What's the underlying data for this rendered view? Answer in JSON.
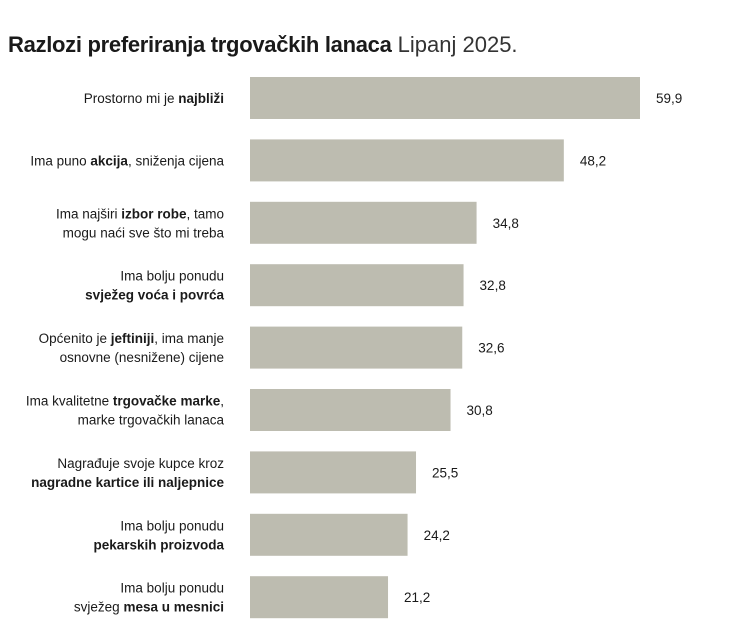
{
  "header": {
    "title": "Razlozi preferiranja trgovačkih lanaca",
    "subtitle": "Lipanj 2025."
  },
  "colors": {
    "bar": "#bdbcb0",
    "text": "#1a1a1a"
  },
  "chart_data": {
    "type": "bar",
    "orientation": "horizontal",
    "title": "Razlozi preferiranja trgovačkih lanaca",
    "subtitle": "Lipanj 2025.",
    "xlabel": "",
    "ylabel": "",
    "xlim": [
      0,
      60
    ],
    "grid": false,
    "legend": "none",
    "categories": [
      "Prostorno mi je najbliži",
      "Ima puno akcija, sniženja cijena",
      "Ima najširi izbor robe, tamo mogu naći sve što mi treba",
      "Ima bolju ponudu svježeg voća i povrća",
      "Općenito je jeftiniji, ima manje osnovne (nesnižene) cijene",
      "Ima kvalitetne trgovačke marke, marke trgovačkih lanaca",
      "Nagrađuje svoje kupce kroz nagradne kartice ili naljepnice",
      "Ima bolju ponudu pekarskih proizvoda",
      "Ima bolju ponudu svježeg mesa u mesnici"
    ],
    "category_lines": [
      [
        [
          [
            "Prostorno mi je ",
            false
          ],
          [
            "najbliži",
            true
          ]
        ]
      ],
      [
        [
          [
            "Ima puno ",
            false
          ],
          [
            "akcija",
            true
          ],
          [
            ", sniženja cijena",
            false
          ]
        ]
      ],
      [
        [
          [
            "Ima najširi ",
            false
          ],
          [
            "izbor robe",
            true
          ],
          [
            ", tamo",
            false
          ]
        ],
        [
          [
            "mogu naći sve što mi treba",
            false
          ]
        ]
      ],
      [
        [
          [
            "Ima bolju ponudu",
            false
          ]
        ],
        [
          [
            "svježeg voća i povrća",
            true
          ]
        ]
      ],
      [
        [
          [
            "Općenito je ",
            false
          ],
          [
            "jeftiniji",
            true
          ],
          [
            ", ima manje",
            false
          ]
        ],
        [
          [
            "osnovne (nesnižene) cijene",
            false
          ]
        ]
      ],
      [
        [
          [
            "Ima kvalitetne ",
            false
          ],
          [
            "trgovačke marke",
            true
          ],
          [
            ",",
            false
          ]
        ],
        [
          [
            "marke trgovačkih lanaca",
            false
          ]
        ]
      ],
      [
        [
          [
            "Nagrađuje svoje kupce kroz",
            false
          ]
        ],
        [
          [
            "nagradne kartice ili naljepnice",
            true
          ]
        ]
      ],
      [
        [
          [
            "Ima bolju ponudu",
            false
          ]
        ],
        [
          [
            "pekarskih proizvoda",
            true
          ]
        ]
      ],
      [
        [
          [
            "Ima bolju ponudu",
            false
          ]
        ],
        [
          [
            "svježeg ",
            false
          ],
          [
            "mesa u mesnici",
            true
          ]
        ]
      ]
    ],
    "values": [
      59.9,
      48.2,
      34.8,
      32.8,
      32.6,
      30.8,
      25.5,
      24.2,
      21.2
    ],
    "value_labels": [
      "59,9",
      "48,2",
      "34,8",
      "32,8",
      "32,6",
      "30,8",
      "25,5",
      "24,2",
      "21,2"
    ]
  }
}
